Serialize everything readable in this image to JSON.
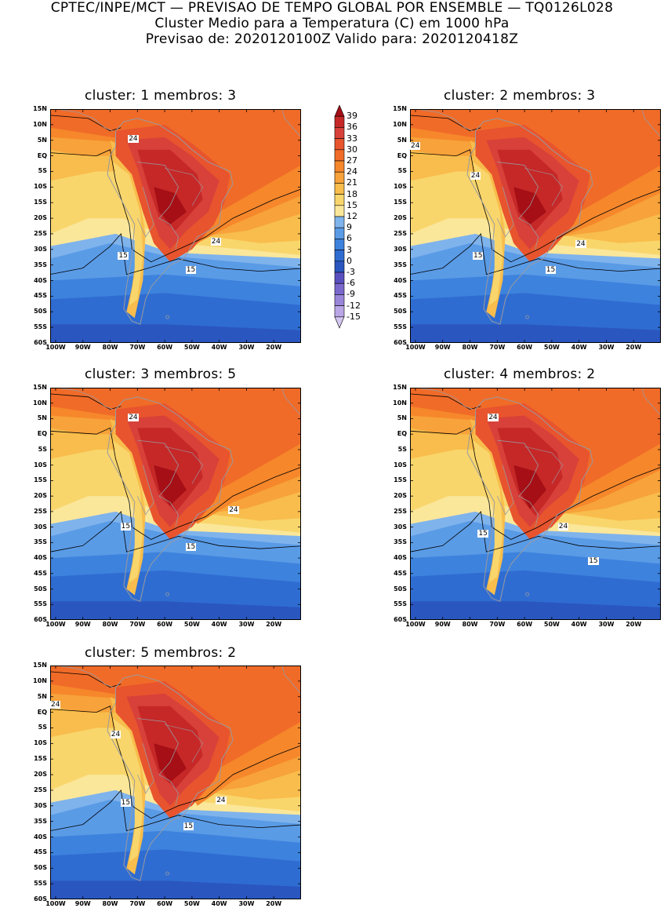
{
  "header": {
    "line1": "CPTEC/INPE/MCT — PREVISAO DE TEMPO GLOBAL POR ENSEMBLE — TQ0126L028",
    "line2": "Cluster Medio para a Temperatura (C) em 1000 hPa",
    "line3": "Previsao de: 2020120100Z   Valido para: 2020120418Z"
  },
  "panels": [
    {
      "title": "cluster: 1   membros: 3",
      "labels": [
        "24",
        "24",
        "15",
        "15"
      ]
    },
    {
      "title": "cluster: 2   membros: 3",
      "labels": [
        "24",
        "24",
        "24",
        "15",
        "15"
      ]
    },
    {
      "title": "cluster: 3   membros: 5",
      "labels": [
        "24",
        "24",
        "15",
        "15"
      ]
    },
    {
      "title": "cluster: 4   membros: 2",
      "labels": [
        "24",
        "24",
        "15",
        "15"
      ]
    },
    {
      "title": "cluster: 5   membros: 2",
      "labels": [
        "24",
        "24",
        "24",
        "15",
        "15"
      ]
    }
  ],
  "axes": {
    "lat_ticks": [
      "15N",
      "10N",
      "5N",
      "EQ",
      "5S",
      "10S",
      "15S",
      "20S",
      "25S",
      "30S",
      "35S",
      "40S",
      "45S",
      "50S",
      "55S",
      "60S"
    ],
    "lon_ticks": [
      "100W",
      "90W",
      "80W",
      "70W",
      "60W",
      "50W",
      "40W",
      "30W",
      "20W"
    ]
  },
  "colorbar": {
    "levels": [
      "39",
      "36",
      "33",
      "30",
      "27",
      "24",
      "21",
      "18",
      "15",
      "12",
      "9",
      "6",
      "3",
      "0",
      "-3",
      "-6",
      "-9",
      "-12",
      "-15"
    ],
    "colors": [
      "#a50f15",
      "#c62828",
      "#d8413a",
      "#e8542d",
      "#f06b28",
      "#f6872b",
      "#f7a23a",
      "#f8bd4c",
      "#f9d66c",
      "#fbe79a",
      "#7fb3ec",
      "#5a9be6",
      "#3d82dd",
      "#2f6cd1",
      "#2a56c0",
      "#5a4fbf",
      "#7a68cc",
      "#9a86d9",
      "#b9a6e6",
      "#d4c6f0"
    ]
  }
}
